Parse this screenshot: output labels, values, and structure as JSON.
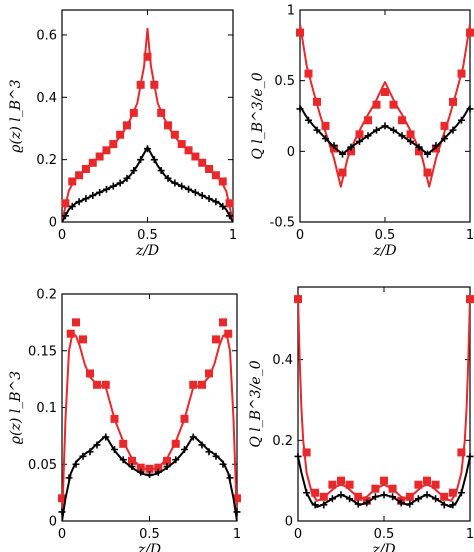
{
  "colors": {
    "red": "#e8282b",
    "black": "#000000"
  },
  "chart_data": [
    {
      "id": "a",
      "type": "line",
      "xlabel": "z/D",
      "ylabel": "ϱ(z) l_B^3",
      "xlim": [
        0,
        1
      ],
      "ylim": [
        0,
        0.68
      ],
      "xticks": [
        0,
        0.5,
        1
      ],
      "xtick_labels": [
        "0",
        "0.5",
        "1"
      ],
      "yticks": [
        0,
        0.2,
        0.4,
        0.6
      ],
      "ytick_labels": [
        "0",
        "0.2",
        "0.4",
        "0.6"
      ],
      "grid": false,
      "series": [
        {
          "style": "red-squares-line",
          "x": [
            0,
            0.04,
            0.08,
            0.12,
            0.16,
            0.2,
            0.24,
            0.28,
            0.32,
            0.36,
            0.4,
            0.44,
            0.48,
            0.5,
            0.52,
            0.56,
            0.6,
            0.64,
            0.68,
            0.72,
            0.76,
            0.8,
            0.84,
            0.88,
            0.92,
            0.96,
            1
          ],
          "y": [
            0.0,
            0.1,
            0.14,
            0.16,
            0.18,
            0.2,
            0.22,
            0.24,
            0.26,
            0.29,
            0.33,
            0.38,
            0.5,
            0.62,
            0.5,
            0.38,
            0.33,
            0.29,
            0.26,
            0.24,
            0.22,
            0.2,
            0.18,
            0.16,
            0.14,
            0.1,
            0.0
          ],
          "markers_x": [
            0.02,
            0.06,
            0.1,
            0.14,
            0.18,
            0.22,
            0.26,
            0.3,
            0.34,
            0.38,
            0.42,
            0.46,
            0.5,
            0.54,
            0.58,
            0.62,
            0.66,
            0.7,
            0.74,
            0.78,
            0.82,
            0.86,
            0.9,
            0.94,
            0.98
          ],
          "markers_y": [
            0.06,
            0.13,
            0.15,
            0.17,
            0.19,
            0.21,
            0.23,
            0.25,
            0.28,
            0.31,
            0.35,
            0.44,
            0.53,
            0.44,
            0.35,
            0.31,
            0.28,
            0.25,
            0.23,
            0.21,
            0.19,
            0.17,
            0.15,
            0.13,
            0.06
          ]
        },
        {
          "style": "black-plus-line",
          "x": [
            0,
            0.04,
            0.08,
            0.12,
            0.16,
            0.2,
            0.24,
            0.28,
            0.32,
            0.36,
            0.4,
            0.44,
            0.48,
            0.5,
            0.52,
            0.56,
            0.6,
            0.64,
            0.68,
            0.72,
            0.76,
            0.8,
            0.84,
            0.88,
            0.92,
            0.96,
            1
          ],
          "y": [
            0.0,
            0.04,
            0.06,
            0.07,
            0.08,
            0.09,
            0.1,
            0.11,
            0.12,
            0.13,
            0.15,
            0.18,
            0.22,
            0.24,
            0.22,
            0.18,
            0.15,
            0.13,
            0.12,
            0.11,
            0.1,
            0.09,
            0.08,
            0.07,
            0.06,
            0.04,
            0.0
          ],
          "markers_x": [
            0.02,
            0.06,
            0.1,
            0.14,
            0.18,
            0.22,
            0.26,
            0.3,
            0.34,
            0.38,
            0.42,
            0.46,
            0.5,
            0.54,
            0.58,
            0.62,
            0.66,
            0.7,
            0.74,
            0.78,
            0.82,
            0.86,
            0.9,
            0.94,
            0.98
          ],
          "markers_y": [
            0.02,
            0.05,
            0.065,
            0.075,
            0.085,
            0.095,
            0.105,
            0.115,
            0.125,
            0.14,
            0.165,
            0.2,
            0.235,
            0.2,
            0.165,
            0.14,
            0.125,
            0.115,
            0.105,
            0.095,
            0.085,
            0.075,
            0.065,
            0.05,
            0.02
          ]
        }
      ]
    },
    {
      "id": "b",
      "type": "line",
      "xlabel": "z/D",
      "ylabel": "Q l_B^3/e_0",
      "xlim": [
        0,
        1
      ],
      "ylim": [
        -0.5,
        1
      ],
      "xticks": [
        0,
        0.5,
        1
      ],
      "xtick_labels": [
        "0",
        "0.5",
        "1"
      ],
      "yticks": [
        -0.5,
        0,
        0.5,
        1
      ],
      "ytick_labels": [
        "-0.5",
        "0",
        "0.5",
        "1"
      ],
      "grid": false,
      "series": [
        {
          "style": "red-squares-line",
          "x": [
            0,
            0.04,
            0.08,
            0.12,
            0.16,
            0.2,
            0.24,
            0.28,
            0.32,
            0.36,
            0.4,
            0.44,
            0.48,
            0.5,
            0.52,
            0.56,
            0.6,
            0.64,
            0.68,
            0.72,
            0.76,
            0.8,
            0.84,
            0.88,
            0.92,
            0.96,
            1
          ],
          "y": [
            0.9,
            0.6,
            0.42,
            0.25,
            0.1,
            -0.05,
            -0.25,
            -0.05,
            0.07,
            0.17,
            0.26,
            0.34,
            0.44,
            0.49,
            0.44,
            0.34,
            0.26,
            0.17,
            0.07,
            -0.05,
            -0.25,
            -0.05,
            0.1,
            0.25,
            0.42,
            0.6,
            0.9
          ],
          "markers_x": [
            0,
            0.05,
            0.1,
            0.15,
            0.2,
            0.25,
            0.3,
            0.35,
            0.4,
            0.45,
            0.5,
            0.55,
            0.6,
            0.65,
            0.7,
            0.75,
            0.8,
            0.85,
            0.9,
            0.95,
            1
          ],
          "markers_y": [
            0.84,
            0.55,
            0.35,
            0.18,
            0.02,
            -0.15,
            0.0,
            0.12,
            0.22,
            0.33,
            0.42,
            0.33,
            0.22,
            0.12,
            0.0,
            -0.15,
            0.02,
            0.18,
            0.35,
            0.55,
            0.84
          ]
        },
        {
          "style": "black-plus-line",
          "x": [
            0,
            0.04,
            0.08,
            0.12,
            0.16,
            0.2,
            0.25,
            0.3,
            0.35,
            0.4,
            0.45,
            0.5,
            0.55,
            0.6,
            0.65,
            0.7,
            0.75,
            0.8,
            0.84,
            0.88,
            0.92,
            0.96,
            1
          ],
          "y": [
            0.32,
            0.24,
            0.18,
            0.13,
            0.08,
            0.03,
            -0.02,
            0.03,
            0.07,
            0.11,
            0.15,
            0.18,
            0.15,
            0.11,
            0.07,
            0.03,
            -0.02,
            0.03,
            0.08,
            0.13,
            0.18,
            0.24,
            0.32
          ],
          "markers_x": [
            0,
            0.05,
            0.1,
            0.15,
            0.2,
            0.25,
            0.3,
            0.35,
            0.4,
            0.45,
            0.5,
            0.55,
            0.6,
            0.65,
            0.7,
            0.75,
            0.8,
            0.85,
            0.9,
            0.95,
            1
          ],
          "markers_y": [
            0.3,
            0.22,
            0.15,
            0.09,
            0.04,
            -0.02,
            0.03,
            0.07,
            0.11,
            0.15,
            0.18,
            0.15,
            0.11,
            0.07,
            0.03,
            -0.02,
            0.04,
            0.09,
            0.15,
            0.22,
            0.3
          ]
        }
      ]
    },
    {
      "id": "c",
      "type": "line",
      "xlabel": "z/D",
      "ylabel": "ϱ(z) l_B^3",
      "xlim": [
        0,
        1
      ],
      "ylim": [
        0,
        0.2
      ],
      "xticks": [
        0,
        0.5,
        1
      ],
      "xtick_labels": [
        "0",
        "0.5",
        "1"
      ],
      "yticks": [
        0,
        0.05,
        0.1,
        0.15,
        0.2
      ],
      "ytick_labels": [
        "0",
        "0.05",
        "0.1",
        "0.15",
        "0.2"
      ],
      "grid": false,
      "series": [
        {
          "style": "red-squares-line",
          "x": [
            0,
            0.02,
            0.04,
            0.06,
            0.08,
            0.1,
            0.13,
            0.16,
            0.2,
            0.25,
            0.3,
            0.35,
            0.4,
            0.45,
            0.5,
            0.55,
            0.6,
            0.65,
            0.7,
            0.75,
            0.8,
            0.84,
            0.87,
            0.9,
            0.92,
            0.94,
            0.96,
            0.98,
            1
          ],
          "y": [
            0.0,
            0.09,
            0.15,
            0.165,
            0.163,
            0.155,
            0.138,
            0.127,
            0.12,
            0.118,
            0.09,
            0.07,
            0.055,
            0.047,
            0.045,
            0.047,
            0.055,
            0.07,
            0.09,
            0.118,
            0.12,
            0.127,
            0.138,
            0.155,
            0.163,
            0.165,
            0.15,
            0.09,
            0.0
          ],
          "markers_x": [
            0,
            0.05,
            0.08,
            0.12,
            0.16,
            0.2,
            0.25,
            0.3,
            0.35,
            0.4,
            0.45,
            0.5,
            0.55,
            0.6,
            0.65,
            0.7,
            0.75,
            0.8,
            0.84,
            0.88,
            0.92,
            0.95,
            1
          ],
          "markers_y": [
            0.02,
            0.165,
            0.175,
            0.16,
            0.13,
            0.12,
            0.12,
            0.09,
            0.068,
            0.053,
            0.047,
            0.046,
            0.047,
            0.053,
            0.068,
            0.09,
            0.12,
            0.12,
            0.13,
            0.16,
            0.175,
            0.165,
            0.02
          ]
        },
        {
          "style": "black-plus-line",
          "x": [
            0,
            0.02,
            0.05,
            0.08,
            0.12,
            0.16,
            0.2,
            0.25,
            0.3,
            0.35,
            0.4,
            0.45,
            0.5,
            0.55,
            0.6,
            0.65,
            0.7,
            0.75,
            0.8,
            0.84,
            0.88,
            0.92,
            0.95,
            0.98,
            1
          ],
          "y": [
            0.0,
            0.02,
            0.042,
            0.052,
            0.058,
            0.062,
            0.068,
            0.075,
            0.062,
            0.053,
            0.047,
            0.042,
            0.04,
            0.042,
            0.047,
            0.053,
            0.062,
            0.075,
            0.068,
            0.062,
            0.058,
            0.052,
            0.042,
            0.02,
            0.0
          ],
          "markers_x": [
            0,
            0.04,
            0.08,
            0.12,
            0.16,
            0.2,
            0.25,
            0.3,
            0.35,
            0.4,
            0.45,
            0.5,
            0.55,
            0.6,
            0.65,
            0.7,
            0.75,
            0.8,
            0.84,
            0.88,
            0.92,
            0.96,
            1
          ],
          "markers_y": [
            0.008,
            0.038,
            0.05,
            0.057,
            0.061,
            0.067,
            0.074,
            0.063,
            0.054,
            0.048,
            0.043,
            0.041,
            0.043,
            0.048,
            0.054,
            0.063,
            0.074,
            0.067,
            0.061,
            0.057,
            0.05,
            0.038,
            0.008
          ]
        }
      ]
    },
    {
      "id": "d",
      "type": "line",
      "xlabel": "z/D",
      "ylabel": "Q l_B^3/e_0",
      "xlim": [
        0,
        1
      ],
      "ylim": [
        0,
        0.58
      ],
      "xticks": [
        0,
        0.5,
        1
      ],
      "xtick_labels": [
        "0",
        "0.5",
        "1"
      ],
      "yticks": [
        0,
        0.2,
        0.4
      ],
      "ytick_labels": [
        "0",
        "0.2",
        "0.4"
      ],
      "grid": false,
      "series": [
        {
          "style": "red-squares-line",
          "x": [
            0,
            0.01,
            0.02,
            0.03,
            0.05,
            0.08,
            0.11,
            0.14,
            0.18,
            0.22,
            0.25,
            0.28,
            0.32,
            0.36,
            0.4,
            0.45,
            0.5,
            0.55,
            0.6,
            0.64,
            0.68,
            0.72,
            0.75,
            0.78,
            0.82,
            0.86,
            0.89,
            0.92,
            0.95,
            0.97,
            0.98,
            0.99,
            1
          ],
          "y": [
            0.55,
            0.4,
            0.28,
            0.2,
            0.12,
            0.07,
            0.05,
            0.055,
            0.07,
            0.085,
            0.09,
            0.085,
            0.07,
            0.055,
            0.06,
            0.08,
            0.09,
            0.08,
            0.06,
            0.055,
            0.07,
            0.085,
            0.09,
            0.085,
            0.07,
            0.055,
            0.05,
            0.07,
            0.12,
            0.2,
            0.28,
            0.4,
            0.55
          ],
          "markers_x": [
            0,
            0.05,
            0.1,
            0.15,
            0.2,
            0.25,
            0.3,
            0.35,
            0.4,
            0.45,
            0.5,
            0.55,
            0.6,
            0.65,
            0.7,
            0.75,
            0.8,
            0.85,
            0.9,
            0.95,
            1
          ],
          "markers_y": [
            0.55,
            0.17,
            0.07,
            0.06,
            0.09,
            0.1,
            0.09,
            0.06,
            0.05,
            0.08,
            0.1,
            0.08,
            0.05,
            0.06,
            0.09,
            0.1,
            0.09,
            0.06,
            0.07,
            0.17,
            0.55
          ]
        },
        {
          "style": "black-plus-line",
          "x": [
            0,
            0.02,
            0.05,
            0.08,
            0.11,
            0.14,
            0.18,
            0.22,
            0.25,
            0.28,
            0.32,
            0.36,
            0.4,
            0.45,
            0.5,
            0.55,
            0.6,
            0.64,
            0.68,
            0.72,
            0.75,
            0.78,
            0.82,
            0.86,
            0.89,
            0.92,
            0.95,
            0.98,
            1
          ],
          "y": [
            0.16,
            0.12,
            0.07,
            0.045,
            0.035,
            0.04,
            0.05,
            0.06,
            0.065,
            0.06,
            0.05,
            0.04,
            0.045,
            0.06,
            0.065,
            0.06,
            0.045,
            0.04,
            0.05,
            0.06,
            0.065,
            0.06,
            0.05,
            0.04,
            0.035,
            0.045,
            0.07,
            0.12,
            0.16
          ],
          "markers_x": [
            0,
            0.05,
            0.1,
            0.15,
            0.2,
            0.25,
            0.3,
            0.35,
            0.4,
            0.45,
            0.5,
            0.55,
            0.6,
            0.65,
            0.7,
            0.75,
            0.8,
            0.85,
            0.9,
            0.95,
            1
          ],
          "markers_y": [
            0.16,
            0.07,
            0.04,
            0.04,
            0.055,
            0.065,
            0.055,
            0.042,
            0.045,
            0.06,
            0.065,
            0.06,
            0.045,
            0.042,
            0.055,
            0.065,
            0.055,
            0.04,
            0.04,
            0.07,
            0.16
          ]
        }
      ]
    }
  ]
}
